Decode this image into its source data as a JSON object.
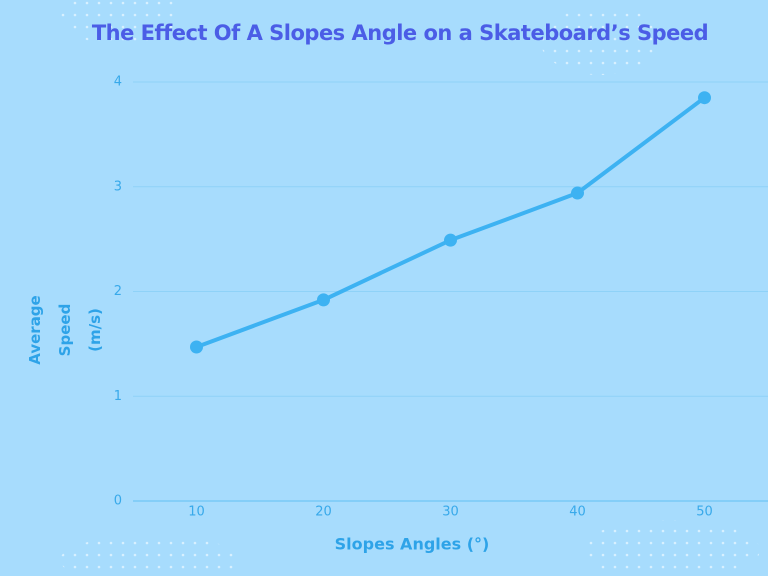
{
  "chart_data": {
    "type": "line",
    "title": "The Effect Of A Slopes Angle on a Skateboard’s Speed",
    "x_label": "Slopes Angles (°)",
    "y_label": "Average Speed (m/s)",
    "x": [
      10,
      20,
      30,
      40,
      50
    ],
    "series": [
      {
        "color": "#3db2f2",
        "values": [
          1.47,
          1.92,
          2.49,
          2.94,
          3.85
        ]
      }
    ],
    "xlim": [
      5,
      55
    ],
    "xticks": [
      10,
      20,
      30,
      40,
      50
    ],
    "ylim": [
      0,
      4
    ],
    "yticks": [
      0,
      1,
      2,
      3,
      4
    ],
    "grid": true
  }
}
